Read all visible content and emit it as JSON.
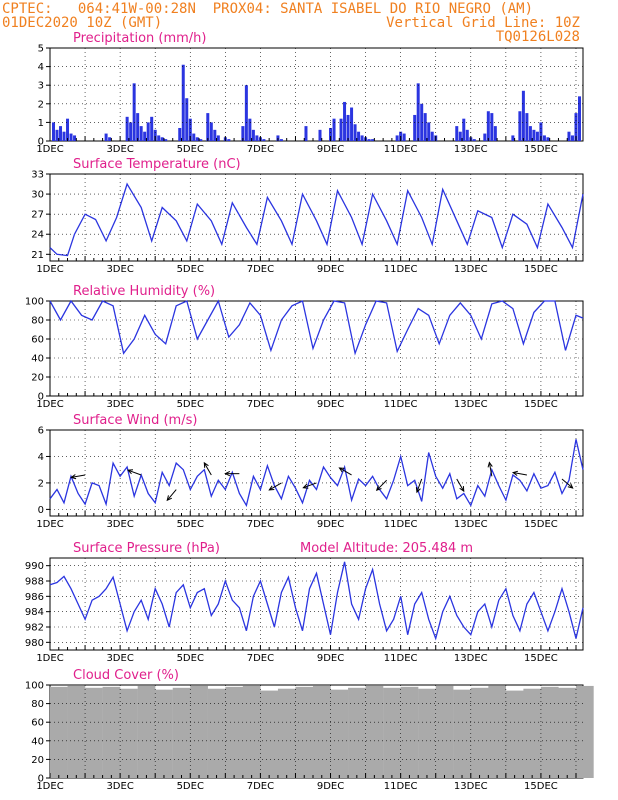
{
  "header": {
    "line1_left": "CPTEC:",
    "line1_coords": "064:41W-00:28N",
    "line1_right": "PROX04: SANTA ISABEL DO RIO NEGRO (AM)",
    "line2_left": "01DEC2020 10Z (GMT)",
    "line2_right": "Vertical Grid Line: 10Z",
    "line3_right": "TQ0126L028"
  },
  "colors": {
    "series": "#2b35e0",
    "bars": "#2b35e0",
    "title": "#e0208c",
    "header": "#f08020",
    "cloud": "#aaaaaa",
    "arrow": "#000000"
  },
  "chart_data": [
    {
      "type": "bar",
      "title": "Precipitation (mm/h)",
      "ylim": [
        0,
        5
      ],
      "yticks": [
        0,
        1,
        2,
        3,
        4,
        5
      ],
      "xticks": [
        "1DEC",
        "3DEC",
        "5DEC",
        "7DEC",
        "9DEC",
        "11DEC",
        "13DEC",
        "15DEC"
      ],
      "x_range_days": [
        1.0,
        16.2
      ],
      "x": [
        1.1,
        1.2,
        1.3,
        1.4,
        1.5,
        1.6,
        1.7,
        2.6,
        2.7,
        3.2,
        3.3,
        3.4,
        3.5,
        3.6,
        3.7,
        3.8,
        3.9,
        4.0,
        4.1,
        4.2,
        4.3,
        4.7,
        4.8,
        4.9,
        5.0,
        5.1,
        5.2,
        5.3,
        5.5,
        5.6,
        5.7,
        5.8,
        6.0,
        6.1,
        6.5,
        6.6,
        6.7,
        6.8,
        6.9,
        7.0,
        7.1,
        7.5,
        7.6,
        8.3,
        8.7,
        9.0,
        9.1,
        9.3,
        9.4,
        9.5,
        9.6,
        9.7,
        9.8,
        9.9,
        10.0,
        10.1,
        10.2,
        10.9,
        11.0,
        11.1,
        11.4,
        11.5,
        11.6,
        11.7,
        11.8,
        11.9,
        12.0,
        12.6,
        12.7,
        12.8,
        12.9,
        13.0,
        13.1,
        13.4,
        13.5,
        13.6,
        13.7,
        14.2,
        14.4,
        14.5,
        14.6,
        14.7,
        14.8,
        14.9,
        15.0,
        15.1,
        15.2,
        15.8,
        15.9,
        16.0,
        16.1
      ],
      "values": [
        1.0,
        0.6,
        0.8,
        0.5,
        1.2,
        0.4,
        0.3,
        0.4,
        0.2,
        1.3,
        1.0,
        3.1,
        1.5,
        0.8,
        0.5,
        1.0,
        1.3,
        0.6,
        0.3,
        0.2,
        0.1,
        0.7,
        4.1,
        2.3,
        1.2,
        0.4,
        0.2,
        0.1,
        1.5,
        1.0,
        0.6,
        0.3,
        0.2,
        0.1,
        0.8,
        3.0,
        1.2,
        0.6,
        0.3,
        0.2,
        0.1,
        0.3,
        0.1,
        0.8,
        0.6,
        0.7,
        1.2,
        1.2,
        2.1,
        1.4,
        1.8,
        0.9,
        0.5,
        0.3,
        0.2,
        0.1,
        0.1,
        0.3,
        0.5,
        0.4,
        1.4,
        3.1,
        2.0,
        1.5,
        1.0,
        0.5,
        0.3,
        0.8,
        0.5,
        1.2,
        0.6,
        0.2,
        0.1,
        0.4,
        1.6,
        1.5,
        0.8,
        0.3,
        1.6,
        2.7,
        1.5,
        0.8,
        0.6,
        0.5,
        1.0,
        0.3,
        0.2,
        0.5,
        0.3,
        1.5,
        2.4
      ]
    },
    {
      "type": "line",
      "title": "Surface Temperature (nC)",
      "ylim": [
        20,
        33
      ],
      "yticks": [
        21,
        24,
        27,
        30,
        33
      ],
      "xticks": [
        "1DEC",
        "3DEC",
        "5DEC",
        "7DEC",
        "9DEC",
        "11DEC",
        "13DEC",
        "15DEC"
      ],
      "x_range_days": [
        1.0,
        16.2
      ],
      "x": [
        1.0,
        1.2,
        1.5,
        1.7,
        2.0,
        2.3,
        2.6,
        2.9,
        3.2,
        3.6,
        3.9,
        4.2,
        4.6,
        4.9,
        5.2,
        5.6,
        5.9,
        6.2,
        6.6,
        6.9,
        7.2,
        7.6,
        7.9,
        8.2,
        8.6,
        8.9,
        9.2,
        9.6,
        9.9,
        10.2,
        10.6,
        10.9,
        11.2,
        11.6,
        11.9,
        12.2,
        12.6,
        12.9,
        13.2,
        13.6,
        13.9,
        14.2,
        14.6,
        14.9,
        15.2,
        15.6,
        15.9,
        16.2
      ],
      "values": [
        22.0,
        21.0,
        20.8,
        24.0,
        27.0,
        26.2,
        23.0,
        26.5,
        31.5,
        28.0,
        23.0,
        28.0,
        26.0,
        23.0,
        28.5,
        26.0,
        22.5,
        28.7,
        25.0,
        22.5,
        29.5,
        26.0,
        22.5,
        30.0,
        26.0,
        22.5,
        30.5,
        26.5,
        22.5,
        30.0,
        26.0,
        22.5,
        30.5,
        26.5,
        22.5,
        30.7,
        26.0,
        22.5,
        27.5,
        26.5,
        22.0,
        27.0,
        25.5,
        22.0,
        28.5,
        25.0,
        22.0,
        30.0
      ]
    },
    {
      "type": "line",
      "title": "Relative Humidity (%)",
      "ylim": [
        0,
        100
      ],
      "yticks": [
        0,
        20,
        40,
        60,
        80,
        100
      ],
      "xticks": [
        "1DEC",
        "3DEC",
        "5DEC",
        "7DEC",
        "9DEC",
        "11DEC",
        "13DEC",
        "15DEC"
      ],
      "x_range_days": [
        1.0,
        16.2
      ],
      "x": [
        1.0,
        1.3,
        1.6,
        1.9,
        2.2,
        2.5,
        2.8,
        3.1,
        3.4,
        3.7,
        4.0,
        4.3,
        4.6,
        4.9,
        5.2,
        5.5,
        5.8,
        6.1,
        6.4,
        6.7,
        7.0,
        7.3,
        7.6,
        7.9,
        8.2,
        8.5,
        8.8,
        9.1,
        9.4,
        9.7,
        10.0,
        10.3,
        10.6,
        10.9,
        11.2,
        11.5,
        11.8,
        12.1,
        12.4,
        12.7,
        13.0,
        13.3,
        13.6,
        13.9,
        14.2,
        14.5,
        14.8,
        15.1,
        15.4,
        15.7,
        16.0,
        16.2
      ],
      "values": [
        100,
        80,
        100,
        85,
        80,
        100,
        95,
        45,
        60,
        85,
        65,
        55,
        95,
        100,
        60,
        80,
        100,
        62,
        75,
        98,
        85,
        48,
        80,
        95,
        100,
        50,
        80,
        100,
        98,
        45,
        75,
        100,
        98,
        47,
        70,
        92,
        85,
        55,
        85,
        98,
        85,
        60,
        97,
        100,
        92,
        55,
        88,
        100,
        100,
        48,
        85,
        82
      ]
    },
    {
      "type": "line",
      "title": "Surface Wind (m/s)",
      "ylim": [
        -0.5,
        6
      ],
      "yticks": [
        0,
        2,
        4,
        6
      ],
      "xticks": [
        "1DEC",
        "3DEC",
        "5DEC",
        "7DEC",
        "9DEC",
        "11DEC",
        "13DEC",
        "15DEC"
      ],
      "x_range_days": [
        1.0,
        16.2
      ],
      "x": [
        1.0,
        1.2,
        1.4,
        1.6,
        1.8,
        2.0,
        2.2,
        2.4,
        2.6,
        2.8,
        3.0,
        3.2,
        3.4,
        3.6,
        3.8,
        4.0,
        4.2,
        4.4,
        4.6,
        4.8,
        5.0,
        5.2,
        5.4,
        5.6,
        5.8,
        6.0,
        6.2,
        6.4,
        6.6,
        6.8,
        7.0,
        7.2,
        7.4,
        7.6,
        7.8,
        8.0,
        8.2,
        8.4,
        8.6,
        8.8,
        9.0,
        9.2,
        9.4,
        9.6,
        9.8,
        10.0,
        10.2,
        10.4,
        10.6,
        10.8,
        11.0,
        11.2,
        11.4,
        11.6,
        11.8,
        12.0,
        12.2,
        12.4,
        12.6,
        12.8,
        13.0,
        13.2,
        13.4,
        13.6,
        13.8,
        14.0,
        14.2,
        14.4,
        14.6,
        14.8,
        15.0,
        15.2,
        15.4,
        15.6,
        15.8,
        16.0,
        16.2
      ],
      "values": [
        0.8,
        1.5,
        0.5,
        2.5,
        1.2,
        0.4,
        2.0,
        1.8,
        0.4,
        3.5,
        2.5,
        3.2,
        1.0,
        2.6,
        1.2,
        0.5,
        2.8,
        1.8,
        3.5,
        3.0,
        1.5,
        2.5,
        3.0,
        1.0,
        2.2,
        1.5,
        2.8,
        1.2,
        0.3,
        2.5,
        1.5,
        3.3,
        1.8,
        0.8,
        2.5,
        1.6,
        0.5,
        2.2,
        1.5,
        3.2,
        2.4,
        1.8,
        3.2,
        0.7,
        2.3,
        1.8,
        2.5,
        1.5,
        0.8,
        2.2,
        4.0,
        1.8,
        2.2,
        0.6,
        4.3,
        2.5,
        1.6,
        2.7,
        0.8,
        1.2,
        0.3,
        1.8,
        1.0,
        3.0,
        1.8,
        0.7,
        2.6,
        2.2,
        1.4,
        2.7,
        1.6,
        1.8,
        2.8,
        1.2,
        2.2,
        5.3,
        3.0
      ],
      "arrows": [
        {
          "x": 2.0,
          "y": 2.6,
          "dir": 190
        },
        {
          "x": 3.6,
          "y": 2.6,
          "dir": 160
        },
        {
          "x": 4.6,
          "y": 1.5,
          "dir": 230
        },
        {
          "x": 5.6,
          "y": 2.6,
          "dir": 120
        },
        {
          "x": 6.4,
          "y": 2.7,
          "dir": 180
        },
        {
          "x": 7.6,
          "y": 2.0,
          "dir": 210
        },
        {
          "x": 8.6,
          "y": 2.0,
          "dir": 200
        },
        {
          "x": 9.6,
          "y": 2.6,
          "dir": 150
        },
        {
          "x": 10.6,
          "y": 2.2,
          "dir": 225
        },
        {
          "x": 11.6,
          "y": 2.3,
          "dir": 250
        },
        {
          "x": 12.6,
          "y": 2.3,
          "dir": 300
        },
        {
          "x": 13.6,
          "y": 2.5,
          "dir": 100
        },
        {
          "x": 14.6,
          "y": 2.6,
          "dir": 170
        },
        {
          "x": 15.6,
          "y": 2.3,
          "dir": 320
        }
      ]
    },
    {
      "type": "line",
      "title": "Surface Pressure (hPa)",
      "annotation": "Model Altitude: 205.484 m",
      "ylim": [
        979,
        991
      ],
      "yticks": [
        980,
        982,
        984,
        986,
        988,
        990
      ],
      "xticks": [
        "1DEC",
        "3DEC",
        "5DEC",
        "7DEC",
        "9DEC",
        "11DEC",
        "13DEC",
        "15DEC"
      ],
      "x_range_days": [
        1.0,
        16.2
      ],
      "x": [
        1.0,
        1.2,
        1.4,
        1.6,
        1.8,
        2.0,
        2.2,
        2.4,
        2.6,
        2.8,
        3.0,
        3.2,
        3.4,
        3.6,
        3.8,
        4.0,
        4.2,
        4.4,
        4.6,
        4.8,
        5.0,
        5.2,
        5.4,
        5.6,
        5.8,
        6.0,
        6.2,
        6.4,
        6.6,
        6.8,
        7.0,
        7.2,
        7.4,
        7.6,
        7.8,
        8.0,
        8.2,
        8.4,
        8.6,
        8.8,
        9.0,
        9.2,
        9.4,
        9.6,
        9.8,
        10.0,
        10.2,
        10.4,
        10.6,
        10.8,
        11.0,
        11.2,
        11.4,
        11.6,
        11.8,
        12.0,
        12.2,
        12.4,
        12.6,
        12.8,
        13.0,
        13.2,
        13.4,
        13.6,
        13.8,
        14.0,
        14.2,
        14.4,
        14.6,
        14.8,
        15.0,
        15.2,
        15.4,
        15.6,
        15.8,
        16.0,
        16.2
      ],
      "values": [
        987.5,
        987.8,
        988.6,
        987.0,
        985.0,
        983.0,
        985.5,
        986.0,
        987.0,
        988.5,
        985.0,
        981.5,
        984.0,
        985.5,
        983.0,
        987.0,
        985.0,
        982.0,
        986.5,
        987.5,
        984.5,
        986.5,
        987.0,
        983.5,
        985.0,
        988.0,
        985.5,
        984.5,
        981.5,
        986.0,
        988.0,
        985.0,
        982.0,
        986.5,
        988.5,
        984.5,
        981.5,
        987.0,
        989.0,
        985.0,
        981.0,
        986.5,
        990.5,
        985.0,
        983.0,
        987.0,
        989.5,
        985.0,
        981.5,
        983.0,
        986.0,
        981.0,
        985.0,
        986.5,
        983.0,
        980.5,
        984.0,
        986.0,
        983.5,
        982.0,
        981.0,
        984.0,
        985.0,
        982.0,
        985.5,
        987.0,
        983.5,
        981.5,
        985.0,
        986.5,
        984.0,
        981.5,
        984.0,
        987.0,
        984.0,
        980.5,
        984.5
      ]
    },
    {
      "type": "bar",
      "title": "Cloud Cover (%)",
      "ylim": [
        0,
        100
      ],
      "yticks": [
        0,
        20,
        40,
        60,
        80,
        100
      ],
      "xticks": [
        "1DEC",
        "3DEC",
        "5DEC",
        "7DEC",
        "9DEC",
        "11DEC",
        "13DEC",
        "15DEC"
      ],
      "x_range_days": [
        1.0,
        16.2
      ],
      "x": [
        1.0,
        1.5,
        2.0,
        2.5,
        3.0,
        3.5,
        4.0,
        4.5,
        5.0,
        5.5,
        6.0,
        6.5,
        7.0,
        7.5,
        8.0,
        8.5,
        9.0,
        9.5,
        10.0,
        10.5,
        11.0,
        11.5,
        12.0,
        12.5,
        13.0,
        13.5,
        14.0,
        14.5,
        15.0,
        15.5,
        16.0
      ],
      "values": [
        98,
        99,
        97,
        98,
        96,
        99,
        95,
        97,
        99,
        96,
        98,
        99,
        94,
        96,
        98,
        99,
        95,
        97,
        99,
        97,
        98,
        96,
        99,
        95,
        97,
        99,
        94,
        96,
        98,
        97,
        99
      ]
    }
  ]
}
